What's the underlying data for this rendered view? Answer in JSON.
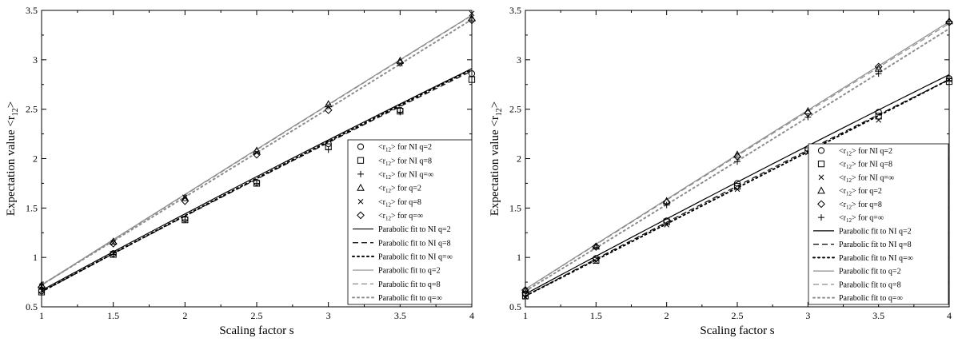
{
  "chart_data": [
    {
      "type": "scatter",
      "xlabel": "Scaling factor s",
      "ylabel": "Expectation value <r",
      "ylabel_sub": "12",
      "ylabel_end": ">",
      "xlim": [
        1,
        4
      ],
      "ylim": [
        0.5,
        3.5
      ],
      "xticks": [
        1,
        1.5,
        2,
        2.5,
        3,
        3.5,
        4
      ],
      "yticks": [
        0.5,
        1,
        1.5,
        2,
        2.5,
        3,
        3.5
      ],
      "xtick_labels": [
        "1",
        "1.5",
        "2",
        "2.5",
        "3",
        "3.5",
        "4"
      ],
      "ytick_labels": [
        "0.5",
        "1",
        "1.5",
        "2",
        "2.5",
        "3",
        "3.5"
      ],
      "legend_position": "bottom-right",
      "x": [
        1,
        1.5,
        2,
        2.5,
        3,
        3.5,
        4
      ],
      "series": [
        {
          "name_pre": "<r",
          "name_sub": "12",
          "name_post": "> for NI q=2",
          "marker": "circle",
          "values": [
            0.66,
            1.04,
            1.39,
            1.76,
            2.15,
            2.49,
            2.86
          ]
        },
        {
          "name_pre": "<r",
          "name_sub": "12",
          "name_post": "> for NI q=8",
          "marker": "square",
          "values": [
            0.65,
            1.03,
            1.38,
            1.75,
            2.12,
            2.48,
            2.8
          ]
        },
        {
          "name_pre": "<r",
          "name_sub": "12",
          "name_post": "> for NI q=∞",
          "marker": "plus",
          "values": [
            0.65,
            1.03,
            1.38,
            1.75,
            2.09,
            2.47,
            2.83
          ]
        },
        {
          "name_pre": "<r",
          "name_sub": "12",
          "name_post": "> for q=2",
          "marker": "triangle",
          "values": [
            0.72,
            1.16,
            1.6,
            2.08,
            2.55,
            2.99,
            3.42
          ]
        },
        {
          "name_pre": "<r",
          "name_sub": "12",
          "name_post": "> for q=8",
          "marker": "x",
          "values": [
            0.71,
            1.15,
            1.61,
            2.06,
            2.53,
            2.96,
            3.47
          ]
        },
        {
          "name_pre": "<r",
          "name_sub": "12",
          "name_post": "> for q=∞",
          "marker": "diamond",
          "values": [
            0.7,
            1.14,
            1.57,
            2.04,
            2.49,
            2.97,
            3.4
          ]
        }
      ],
      "fits": [
        {
          "name": "Parabolic fit to NI q=2",
          "color": "#000000",
          "dash": "solid",
          "coeffs": [
            -0.013,
            0.813,
            -0.133
          ]
        },
        {
          "name": "Parabolic fit to NI q=8",
          "color": "#000000",
          "dash": "dashed",
          "coeffs": [
            -0.01,
            0.795,
            -0.133
          ]
        },
        {
          "name": "Parabolic fit to NI q=∞",
          "color": "#000000",
          "dash": "dotted",
          "coeffs": [
            -0.01,
            0.8,
            -0.137
          ]
        },
        {
          "name": "Parabolic fit to q=2",
          "color": "#8c8c8c",
          "dash": "solid",
          "coeffs": [
            -0.003,
            0.925,
            -0.2
          ]
        },
        {
          "name": "Parabolic fit to q=8",
          "color": "#8c8c8c",
          "dash": "dashed",
          "coeffs": [
            -0.003,
            0.925,
            -0.205
          ]
        },
        {
          "name": "Parabolic fit to q=∞",
          "color": "#8c8c8c",
          "dash": "dotted",
          "coeffs": [
            0.003,
            0.88,
            -0.16
          ]
        }
      ]
    },
    {
      "type": "scatter",
      "xlabel": "Scaling factor s",
      "ylabel": "Expectation value <r",
      "ylabel_sub": "12",
      "ylabel_end": ">",
      "xlim": [
        1,
        4
      ],
      "ylim": [
        0.5,
        3.5
      ],
      "xticks": [
        1,
        1.5,
        2,
        2.5,
        3,
        3.5,
        4
      ],
      "yticks": [
        0.5,
        1,
        1.5,
        2,
        2.5,
        3,
        3.5
      ],
      "xtick_labels": [
        "1",
        "1.5",
        "2",
        "2.5",
        "3",
        "3.5",
        "4"
      ],
      "ytick_labels": [
        "0.5",
        "1",
        "1.5",
        "2",
        "2.5",
        "3",
        "3.5"
      ],
      "legend_position": "bottom-right",
      "x": [
        1,
        1.5,
        2,
        2.5,
        3,
        3.5,
        4
      ],
      "series": [
        {
          "name_pre": "<r",
          "name_sub": "12",
          "name_post": "> for NI q=2",
          "marker": "circle",
          "values": [
            0.63,
            0.99,
            1.37,
            1.75,
            2.1,
            2.47,
            2.81
          ]
        },
        {
          "name_pre": "<r",
          "name_sub": "12",
          "name_post": "> for NI q=8",
          "marker": "square",
          "values": [
            0.61,
            0.97,
            1.36,
            1.72,
            2.08,
            2.43,
            2.78
          ]
        },
        {
          "name_pre": "<r",
          "name_sub": "12",
          "name_post": "> for NI q=∞",
          "marker": "x",
          "values": [
            0.6,
            0.96,
            1.33,
            1.69,
            2.06,
            2.39,
            2.8
          ]
        },
        {
          "name_pre": "<r",
          "name_sub": "12",
          "name_post": "> for q=2",
          "marker": "triangle",
          "values": [
            0.67,
            1.11,
            1.57,
            2.04,
            2.48,
            2.91,
            3.39
          ]
        },
        {
          "name_pre": "<r",
          "name_sub": "12",
          "name_post": "> for q=8",
          "marker": "diamond",
          "values": [
            0.67,
            1.11,
            1.56,
            2.02,
            2.46,
            2.93,
            3.38
          ]
        },
        {
          "name_pre": "<r",
          "name_sub": "12",
          "name_post": "> for q=∞",
          "marker": "plus",
          "values": [
            0.66,
            1.1,
            1.53,
            1.97,
            2.42,
            2.86,
            3.39
          ]
        }
      ],
      "fits": [
        {
          "name": "Parabolic fit to NI q=2",
          "color": "#000000",
          "dash": "solid",
          "coeffs": [
            -0.01,
            0.79,
            -0.15
          ]
        },
        {
          "name": "Parabolic fit to NI q=8",
          "color": "#000000",
          "dash": "dashed",
          "coeffs": [
            -0.008,
            0.77,
            -0.152
          ]
        },
        {
          "name": "Parabolic fit to NI q=∞",
          "color": "#000000",
          "dash": "dotted",
          "coeffs": [
            0.0,
            0.73,
            -0.12
          ]
        },
        {
          "name": "Parabolic fit to q=2",
          "color": "#8c8c8c",
          "dash": "solid",
          "coeffs": [
            -0.003,
            0.917,
            -0.234
          ]
        },
        {
          "name": "Parabolic fit to q=8",
          "color": "#8c8c8c",
          "dash": "dashed",
          "coeffs": [
            -0.003,
            0.912,
            -0.232
          ]
        },
        {
          "name": "Parabolic fit to q=∞",
          "color": "#8c8c8c",
          "dash": "dotted",
          "coeffs": [
            0.005,
            0.86,
            -0.205
          ]
        }
      ]
    }
  ]
}
